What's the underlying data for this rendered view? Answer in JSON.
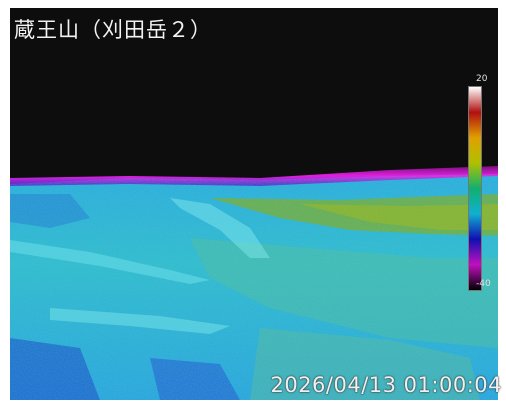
{
  "camera": {
    "title": "蔵王山（刈田岳２）",
    "timestamp": "2026/04/13 01:00:04"
  },
  "temperature_scale": {
    "max_label": "20",
    "min_label": "-40",
    "max_value": 20,
    "min_value": -40,
    "colors": [
      "#ffffff",
      "#b01010",
      "#e0a000",
      "#b0c000",
      "#10b070",
      "#10b0d0",
      "#1010b0",
      "#c010c0",
      "#000000"
    ]
  },
  "palette": {
    "sky": "#0d0d0d",
    "horizon": "#d010d0",
    "cold": "#20a8e0",
    "warm": "#8ab010",
    "terrain": "#40c0b0"
  }
}
